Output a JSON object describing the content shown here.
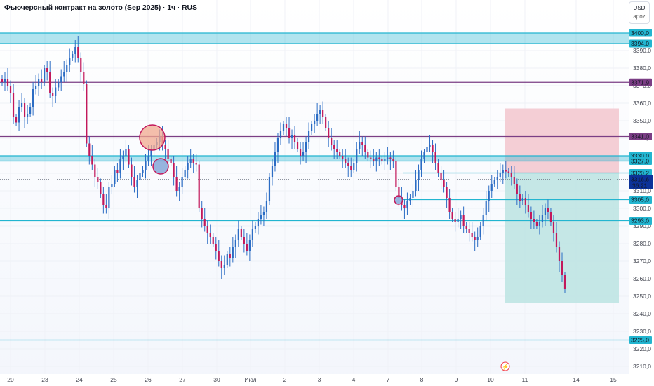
{
  "header": {
    "title": "Фьючерсный контракт на золото (Sep 2025) · 1ч · RUS",
    "currency": "USD",
    "mode": "apoz"
  },
  "chart_data": {
    "type": "candlestick",
    "ylim": [
      3206,
      3404
    ],
    "y_ticks": [
      3210,
      3220,
      3230,
      3240,
      3250,
      3260,
      3270,
      3280,
      3290,
      3300,
      3310,
      3320,
      3330,
      3340,
      3350,
      3360,
      3370,
      3380,
      3390,
      3400
    ],
    "x_ticks": [
      "20",
      "23",
      "24",
      "25",
      "26",
      "27",
      "30",
      "Июл",
      "2",
      "3",
      "4",
      "7",
      "8",
      "9",
      "10",
      "11",
      "14",
      "15"
    ],
    "colors": {
      "up": "#22ab94",
      "down": "#f7525f",
      "bar": "#2b6cc4"
    },
    "current_price": {
      "label": "3316,6",
      "timer": "36:21",
      "value": 3316.6,
      "color": "#0c3299"
    },
    "levels": [
      {
        "value": 3394.0,
        "label": "3394,0",
        "color": "#22b5d0"
      },
      {
        "value": 3400.0,
        "label": "3400,0",
        "color": "#22b5d0"
      },
      {
        "value": 3371.9,
        "label": "3371,9",
        "color": "#7b3e85"
      },
      {
        "value": 3341.0,
        "label": "3341,0",
        "color": "#7b3e85"
      },
      {
        "value": 3330.0,
        "label": "3330,0",
        "color": "#22b5d0"
      },
      {
        "value": 3327.0,
        "label": "3327,0",
        "color": "#22b5d0"
      },
      {
        "value": 3320.2,
        "label": "3320,2",
        "color": "#22b5d0"
      },
      {
        "value": 3305.0,
        "label": "3305,0",
        "color": "#22b5d0"
      },
      {
        "value": 3293.0,
        "label": "3293,0",
        "color": "#22b5d0"
      },
      {
        "value": 3225.0,
        "label": "3225,0",
        "color": "#22b5d0"
      }
    ],
    "zones": [
      {
        "from": 3394.0,
        "to": 3400.0,
        "color": "#22b5d0"
      },
      {
        "from": 3327.0,
        "to": 3330.0,
        "color": "#22b5d0"
      }
    ],
    "trade_box": {
      "entry": 3320.2,
      "stop": 3357.0,
      "target": 3246.0,
      "risk_color": "#f3c9d0",
      "reward_color": "#bfe4e3"
    },
    "closes": [
      3372,
      3374,
      3370,
      3366,
      3352,
      3349,
      3358,
      3360,
      3352,
      3354,
      3358,
      3368,
      3370,
      3374,
      3372,
      3380,
      3378,
      3366,
      3364,
      3369,
      3372,
      3375,
      3378,
      3382,
      3386,
      3388,
      3392,
      3386,
      3378,
      3371,
      3337,
      3330,
      3325,
      3318,
      3315,
      3308,
      3302,
      3300,
      3312,
      3314,
      3322,
      3320,
      3328,
      3330,
      3334,
      3325,
      3318,
      3312,
      3316,
      3320,
      3322,
      3327,
      3330,
      3333,
      3336,
      3338,
      3341,
      3336,
      3334,
      3328,
      3326,
      3318,
      3310,
      3312,
      3318,
      3322,
      3326,
      3328,
      3326,
      3325,
      3300,
      3294,
      3290,
      3286,
      3284,
      3280,
      3276,
      3270,
      3266,
      3268,
      3274,
      3272,
      3278,
      3282,
      3288,
      3284,
      3280,
      3276,
      3282,
      3288,
      3290,
      3294,
      3296,
      3298,
      3304,
      3318,
      3324,
      3332,
      3340,
      3344,
      3348,
      3346,
      3340,
      3342,
      3338,
      3334,
      3330,
      3332,
      3338,
      3344,
      3348,
      3350,
      3354,
      3356,
      3352,
      3346,
      3340,
      3336,
      3334,
      3332,
      3330,
      3328,
      3326,
      3324,
      3322,
      3326,
      3334,
      3338,
      3336,
      3332,
      3329,
      3328,
      3327,
      3329,
      3328,
      3327,
      3328,
      3329,
      3328,
      3327,
      3312,
      3306,
      3302,
      3300,
      3304,
      3306,
      3310,
      3316,
      3322,
      3328,
      3332,
      3335,
      3336,
      3332,
      3326,
      3320,
      3316,
      3312,
      3306,
      3298,
      3294,
      3292,
      3294,
      3296,
      3290,
      3288,
      3286,
      3284,
      3282,
      3284,
      3290,
      3296,
      3304,
      3310,
      3314,
      3316,
      3318,
      3320,
      3322,
      3321,
      3320,
      3318,
      3314,
      3308,
      3304,
      3306,
      3302,
      3298,
      3294,
      3292,
      3290,
      3292,
      3296,
      3300,
      3298,
      3292,
      3286,
      3278,
      3270,
      3262,
      3254
    ]
  }
}
